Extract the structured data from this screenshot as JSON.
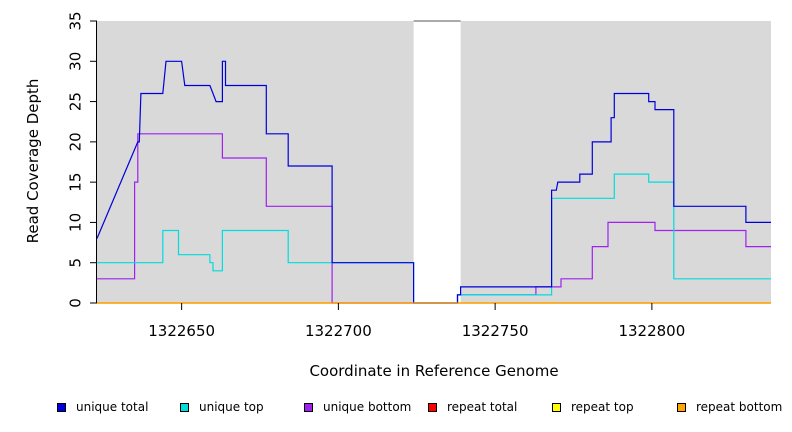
{
  "chart_data": {
    "type": "line",
    "xlabel": "Coordinate in Reference Genome",
    "ylabel": "Read Coverage Depth",
    "xlim": [
      1322623,
      1322838
    ],
    "ylim": [
      0,
      35
    ],
    "x_ticks": [
      1322650,
      1322700,
      1322750,
      1322800
    ],
    "x_tick_labels": [
      "1322650",
      "1322700",
      "1322750",
      "1322800"
    ],
    "y_ticks": [
      0,
      5,
      10,
      15,
      20,
      25,
      30,
      35
    ],
    "y_tick_labels": [
      "0",
      "5",
      "10",
      "15",
      "20",
      "25",
      "30",
      "35"
    ],
    "gap_region": [
      1322724,
      1322739
    ],
    "background_color": "#d9d9d9",
    "series": [
      {
        "name": "unique total",
        "color": "#0000dd",
        "steps": [
          [
            1322623,
            8
          ],
          [
            1322636,
            20
          ],
          [
            1322636.5,
            20
          ],
          [
            1322637,
            26
          ],
          [
            1322644,
            26
          ],
          [
            1322645,
            30
          ],
          [
            1322650,
            30
          ],
          [
            1322651,
            27
          ],
          [
            1322659,
            27
          ],
          [
            1322660,
            26
          ],
          [
            1322661,
            25
          ],
          [
            1322663,
            25
          ],
          [
            1322663,
            30
          ],
          [
            1322664,
            30
          ],
          [
            1322664,
            27
          ],
          [
            1322677,
            27
          ],
          [
            1322677,
            21
          ],
          [
            1322684,
            21
          ],
          [
            1322684,
            17
          ],
          [
            1322698,
            17
          ],
          [
            1322698,
            5
          ],
          [
            1322724,
            5
          ],
          [
            1322724,
            0
          ],
          [
            1322738,
            0
          ],
          [
            1322738,
            1
          ],
          [
            1322739,
            1
          ],
          [
            1322739,
            2
          ],
          [
            1322768,
            2
          ],
          [
            1322768,
            14
          ],
          [
            1322769.5,
            14
          ],
          [
            1322770,
            15
          ],
          [
            1322777,
            15
          ],
          [
            1322777,
            16
          ],
          [
            1322781,
            16
          ],
          [
            1322781,
            20
          ],
          [
            1322787,
            20
          ],
          [
            1322787,
            23
          ],
          [
            1322788,
            23
          ],
          [
            1322788,
            26
          ],
          [
            1322799,
            26
          ],
          [
            1322799,
            25
          ],
          [
            1322801,
            25
          ],
          [
            1322801,
            24
          ],
          [
            1322807,
            24
          ],
          [
            1322807,
            12
          ],
          [
            1322830,
            12
          ],
          [
            1322830,
            10
          ],
          [
            1322838,
            10
          ]
        ]
      },
      {
        "name": "unique top",
        "color": "#00dddd",
        "steps": [
          [
            1322623,
            5
          ],
          [
            1322644,
            5
          ],
          [
            1322644,
            9
          ],
          [
            1322649,
            9
          ],
          [
            1322649,
            6
          ],
          [
            1322659,
            6
          ],
          [
            1322659,
            5
          ],
          [
            1322660,
            5
          ],
          [
            1322660,
            4
          ],
          [
            1322663,
            4
          ],
          [
            1322663,
            9
          ],
          [
            1322684,
            9
          ],
          [
            1322684,
            5
          ],
          [
            1322698,
            5
          ],
          [
            1322698,
            5
          ],
          [
            1322724,
            5
          ],
          [
            1322724,
            0
          ],
          [
            1322738,
            0
          ],
          [
            1322738,
            1
          ],
          [
            1322768,
            1
          ],
          [
            1322768,
            13
          ],
          [
            1322788,
            13
          ],
          [
            1322788,
            16
          ],
          [
            1322799,
            16
          ],
          [
            1322799,
            15
          ],
          [
            1322807,
            15
          ],
          [
            1322807,
            3
          ],
          [
            1322838,
            3
          ]
        ]
      },
      {
        "name": "unique bottom",
        "color": "#a020f0",
        "steps": [
          [
            1322623,
            3
          ],
          [
            1322635,
            3
          ],
          [
            1322635,
            15
          ],
          [
            1322636,
            15
          ],
          [
            1322636,
            21
          ],
          [
            1322663,
            21
          ],
          [
            1322663,
            18
          ],
          [
            1322677,
            18
          ],
          [
            1322677,
            12
          ],
          [
            1322698,
            12
          ],
          [
            1322698,
            0
          ],
          [
            1322724,
            0
          ],
          [
            1322738,
            0
          ],
          [
            1322738,
            1
          ],
          [
            1322763,
            1
          ],
          [
            1322763,
            2
          ],
          [
            1322771,
            2
          ],
          [
            1322771,
            3
          ],
          [
            1322781,
            3
          ],
          [
            1322781,
            7
          ],
          [
            1322786,
            7
          ],
          [
            1322786,
            10
          ],
          [
            1322801,
            10
          ],
          [
            1322801,
            9
          ],
          [
            1322830,
            9
          ],
          [
            1322830,
            7
          ],
          [
            1322838,
            7
          ]
        ]
      },
      {
        "name": "repeat total",
        "color": "#ff0000",
        "steps": [
          [
            1322623,
            0
          ],
          [
            1322838,
            0
          ]
        ]
      },
      {
        "name": "repeat top",
        "color": "#ffff00",
        "steps": [
          [
            1322623,
            0
          ],
          [
            1322838,
            0
          ]
        ]
      },
      {
        "name": "repeat bottom",
        "color": "#ffa500",
        "steps": [
          [
            1322623,
            0
          ],
          [
            1322838,
            0
          ]
        ]
      }
    ],
    "legend_position": "bottom"
  },
  "legend": {
    "items": [
      {
        "label": "unique total",
        "color": "#0000dd"
      },
      {
        "label": "unique top",
        "color": "#00dddd"
      },
      {
        "label": "unique bottom",
        "color": "#a020f0"
      },
      {
        "label": "repeat total",
        "color": "#ff0000"
      },
      {
        "label": "repeat top",
        "color": "#ffff00"
      },
      {
        "label": "repeat bottom",
        "color": "#ffa500"
      }
    ]
  }
}
